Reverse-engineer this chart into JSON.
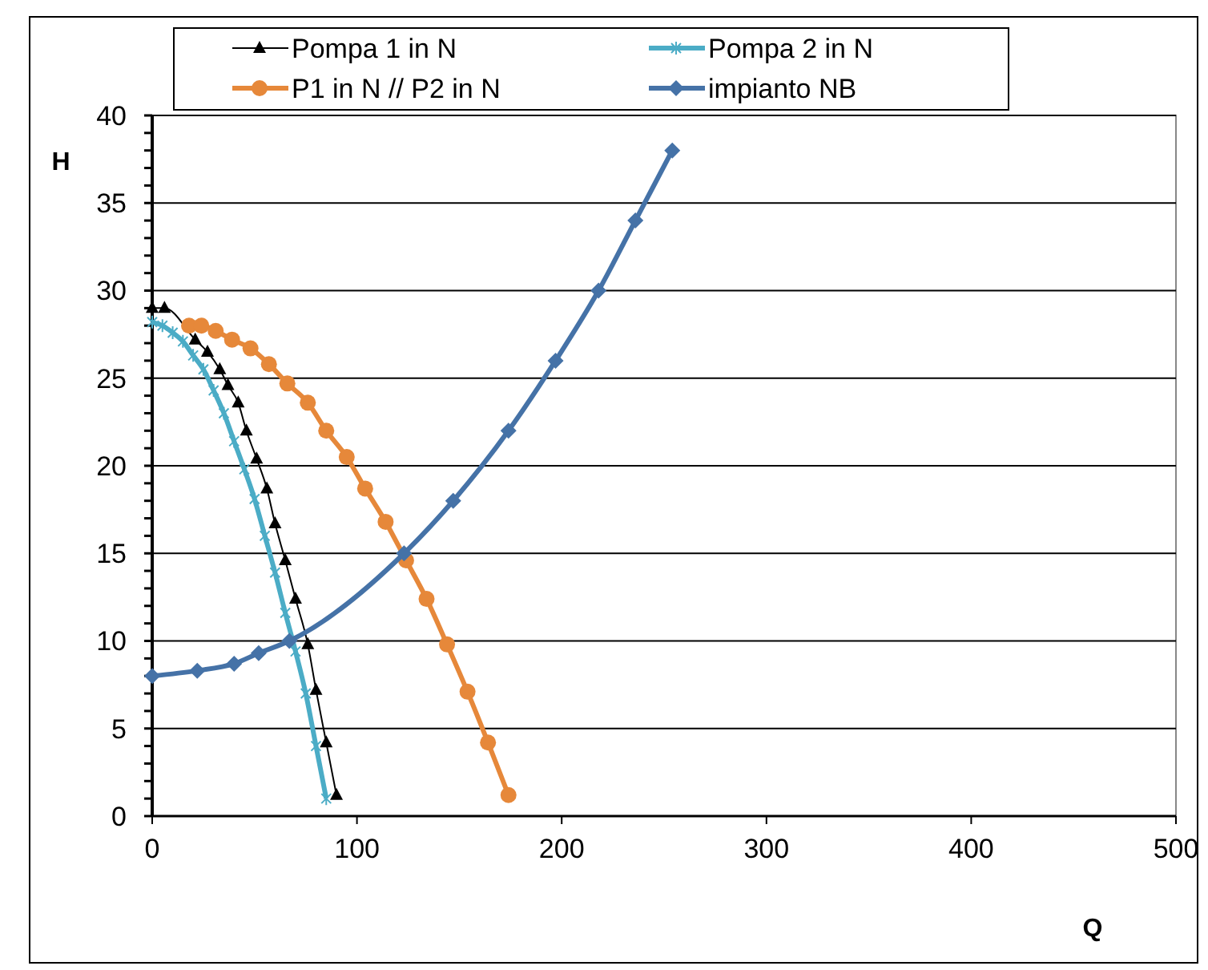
{
  "chart_data": {
    "type": "line",
    "xlabel": "Q",
    "ylabel": "H",
    "xlim": [
      0,
      500
    ],
    "ylim": [
      0,
      40
    ],
    "xticks": [
      0,
      100,
      200,
      300,
      400,
      500
    ],
    "yticks": [
      0,
      {
        "value": 1,
        "label": null
      },
      {
        "value": 2,
        "label": null
      },
      {
        "value": 3,
        "label": null
      },
      {
        "value": 4,
        "label": null
      },
      5,
      {
        "value": 6,
        "label": null
      },
      {
        "value": 7,
        "label": null
      },
      {
        "value": 8,
        "label": null
      },
      {
        "value": 9,
        "label": null
      },
      10,
      {
        "value": 11,
        "label": null
      },
      {
        "value": 12,
        "label": null
      },
      {
        "value": 13,
        "label": null
      },
      {
        "value": 14,
        "label": null
      },
      15,
      {
        "value": 16,
        "label": null
      },
      {
        "value": 17,
        "label": null
      },
      {
        "value": 18,
        "label": null
      },
      {
        "value": 19,
        "label": null
      },
      20,
      {
        "value": 21,
        "label": null
      },
      {
        "value": 22,
        "label": null
      },
      {
        "value": 23,
        "label": null
      },
      {
        "value": 24,
        "label": null
      },
      25,
      {
        "value": 26,
        "label": null
      },
      {
        "value": 27,
        "label": null
      },
      {
        "value": 28,
        "label": null
      },
      {
        "value": 29,
        "label": null
      },
      30,
      {
        "value": 31,
        "label": null
      },
      {
        "value": 32,
        "label": null
      },
      {
        "value": 33,
        "label": null
      },
      {
        "value": 34,
        "label": null
      },
      35,
      {
        "value": 36,
        "label": null
      },
      {
        "value": 37,
        "label": null
      },
      {
        "value": 38,
        "label": null
      },
      {
        "value": 39,
        "label": null
      },
      40
    ],
    "grid": "y",
    "legend": "top",
    "series": [
      {
        "name": "Pompa 1 in N",
        "color": "#000000",
        "marker": "triangle",
        "x": [
          0,
          6,
          21,
          27,
          33,
          37,
          42,
          46,
          51,
          56,
          60,
          65,
          70,
          76,
          80,
          85,
          90
        ],
        "values": [
          29,
          29,
          27.2,
          26.5,
          25.5,
          24.6,
          23.6,
          22,
          20.4,
          18.7,
          16.7,
          14.6,
          12.4,
          9.8,
          7.2,
          4.2,
          1.2
        ]
      },
      {
        "name": "Pompa 2 in N",
        "color": "#4bacc6",
        "marker": "cross",
        "x": [
          0,
          5,
          10,
          15,
          20,
          25,
          30,
          35,
          40,
          45,
          50,
          55,
          60,
          65,
          70,
          75,
          80,
          85
        ],
        "values": [
          28.2,
          28,
          27.6,
          27.1,
          26.3,
          25.5,
          24.3,
          23,
          21.4,
          19.8,
          18.1,
          16,
          13.9,
          11.6,
          9.4,
          7,
          4,
          1
        ]
      },
      {
        "name": "P1 in N // P2 in N",
        "color": "#e6883a",
        "marker": "circle",
        "x": [
          18,
          24,
          31,
          39,
          48,
          57,
          66,
          76,
          85,
          95,
          104,
          114,
          124,
          134,
          144,
          154,
          164,
          174
        ],
        "values": [
          28,
          28,
          27.7,
          27.2,
          26.7,
          25.8,
          24.7,
          23.6,
          22,
          20.5,
          18.7,
          16.8,
          14.6,
          12.4,
          9.8,
          7.1,
          4.2,
          1.2
        ]
      },
      {
        "name": "impianto NB",
        "color": "#4572a7",
        "marker": "diamond",
        "x": [
          0,
          22,
          40,
          52,
          67,
          123,
          147,
          174,
          197,
          218,
          236,
          254
        ],
        "values": [
          8,
          8.3,
          8.7,
          9.3,
          10,
          15,
          18,
          22,
          26,
          30,
          34,
          38
        ]
      }
    ]
  }
}
